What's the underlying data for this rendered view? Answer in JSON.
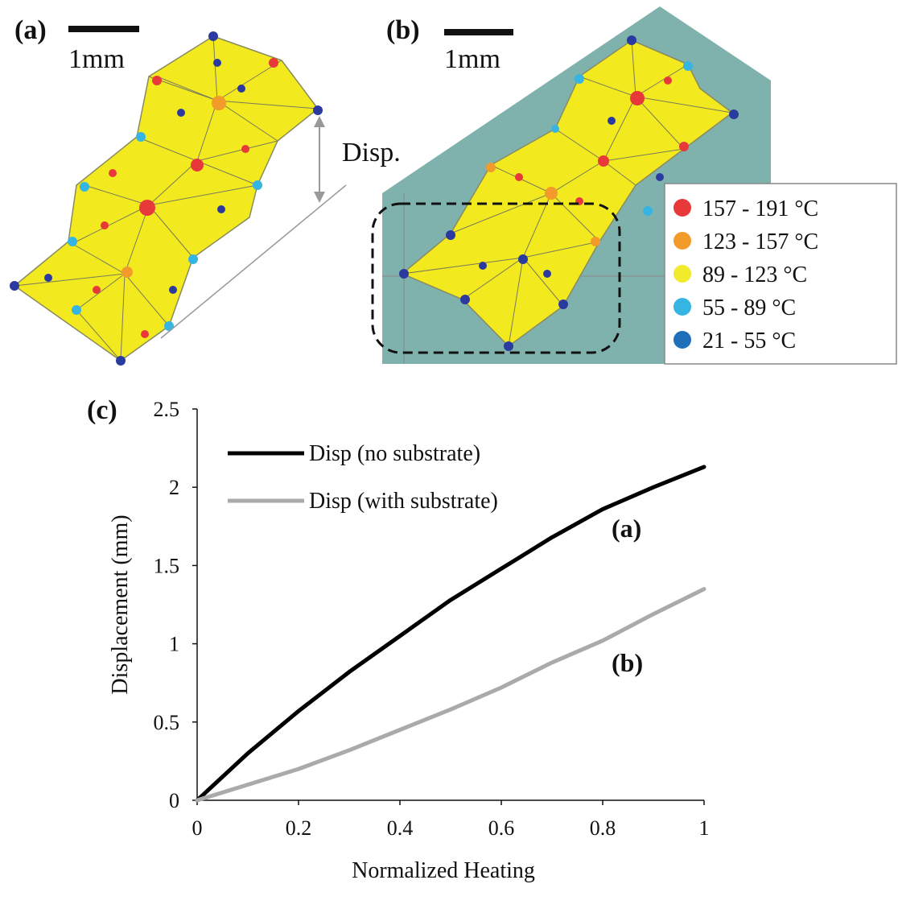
{
  "panel_a": {
    "label": "(a)",
    "scale_bar": "1mm",
    "disp_label": "Disp."
  },
  "panel_b": {
    "label": "(b)",
    "scale_bar": "1mm"
  },
  "legend": {
    "items": [
      {
        "label": "157 - 191 °C",
        "color": "#e8393a"
      },
      {
        "label": "123 - 157 °C",
        "color": "#f39b2a"
      },
      {
        "label": "89 - 123 °C",
        "color": "#f2ea2c"
      },
      {
        "label": "55 - 89 °C",
        "color": "#37b5e2"
      },
      {
        "label": "21 - 55 °C",
        "color": "#1f6fba"
      }
    ]
  },
  "colors": {
    "lattice_fill": "#f2ea1e",
    "substrate": "#7fb2ad",
    "node_blue": "#2b3a9e"
  },
  "chart_data": {
    "panel_label": "(c)",
    "type": "line",
    "xlabel": "Normalized Heating",
    "ylabel": "Displacement (mm)",
    "xlim": [
      0,
      1
    ],
    "ylim": [
      0,
      2.5
    ],
    "xticks": [
      "0",
      "0.2",
      "0.4",
      "0.6",
      "0.8",
      "1"
    ],
    "yticks": [
      "0",
      "0.5",
      "1",
      "1.5",
      "2",
      "2.5"
    ],
    "series": [
      {
        "name": "Disp (no substrate)",
        "tag": "(a)",
        "color": "#000000",
        "x": [
          0,
          0.1,
          0.2,
          0.3,
          0.4,
          0.5,
          0.6,
          0.7,
          0.8,
          0.9,
          1.0
        ],
        "y": [
          0,
          0.3,
          0.57,
          0.82,
          1.05,
          1.28,
          1.48,
          1.68,
          1.86,
          2.0,
          2.13
        ]
      },
      {
        "name": "Disp (with substrate)",
        "tag": "(b)",
        "color": "#aaaaaa",
        "x": [
          0,
          0.1,
          0.2,
          0.3,
          0.4,
          0.5,
          0.6,
          0.7,
          0.8,
          0.9,
          1.0
        ],
        "y": [
          0,
          0.1,
          0.2,
          0.32,
          0.45,
          0.58,
          0.72,
          0.88,
          1.02,
          1.19,
          1.35
        ]
      }
    ]
  }
}
